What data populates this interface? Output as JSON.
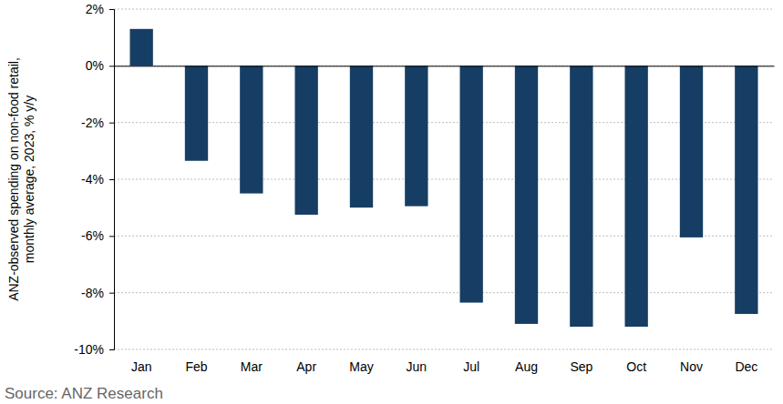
{
  "chart_data": {
    "type": "bar",
    "y_label": [
      "ANZ-observed spending on non-food retail,",
      "monthly average, 2023, % y/y"
    ],
    "source": "Source: ANZ Research",
    "categories": [
      "Jan",
      "Feb",
      "Mar",
      "Apr",
      "May",
      "Jun",
      "Jul",
      "Aug",
      "Sep",
      "Oct",
      "Nov",
      "Dec"
    ],
    "values": [
      1.3,
      -3.35,
      -4.5,
      -5.25,
      -5.0,
      -4.95,
      -8.35,
      -9.1,
      -9.2,
      -9.2,
      -6.05,
      -8.75
    ],
    "color": "#163e64",
    "ylim": [
      -10,
      2
    ],
    "yticks": [
      {
        "value": -10,
        "label": "-10%"
      },
      {
        "value": -8,
        "label": "-8%"
      },
      {
        "value": -6,
        "label": "-6%"
      },
      {
        "value": -4,
        "label": "-4%"
      },
      {
        "value": -2,
        "label": "-2%"
      },
      {
        "value": 0,
        "label": "0%"
      },
      {
        "value": 2,
        "label": "2%"
      }
    ],
    "grid": true
  }
}
